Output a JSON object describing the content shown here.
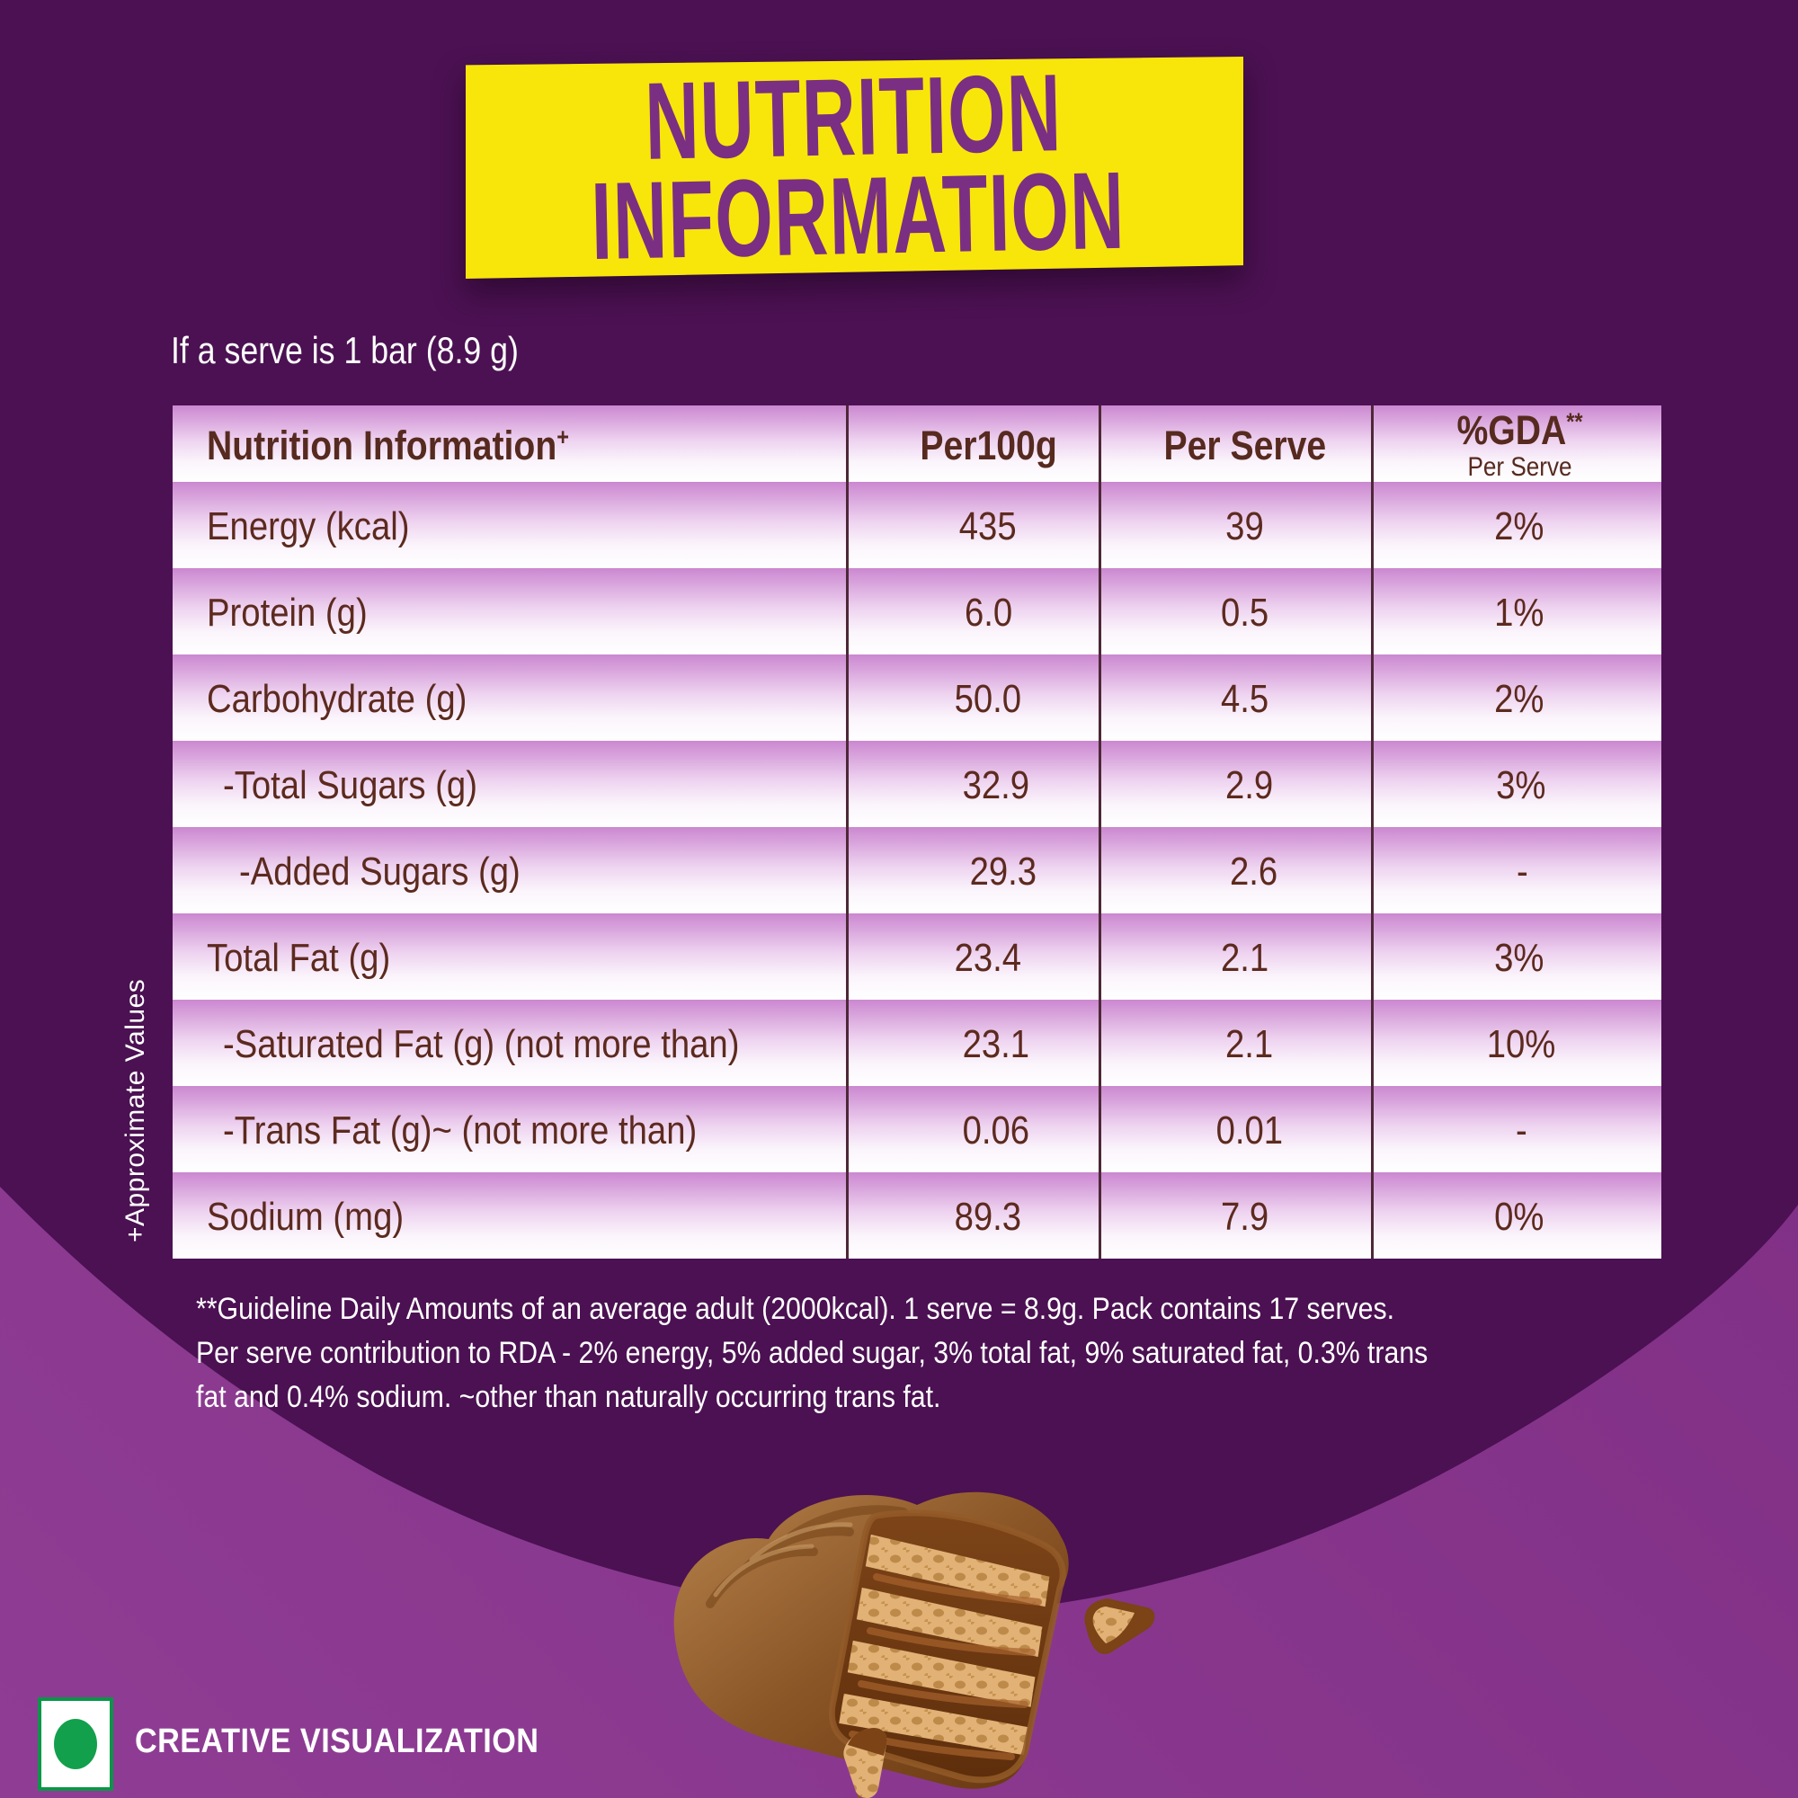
{
  "banner": {
    "title_lines": [
      "NUTRITION",
      "INFORMATION"
    ]
  },
  "serve_note": "If a serve is 1 bar (8.9 g)",
  "table": {
    "headers": {
      "col1": "Nutrition Information",
      "col1_sup": "+",
      "col2": "Per100g",
      "col3": "Per Serve",
      "col4": "%GDA",
      "col4_sup": "**",
      "col4_sub": "Per Serve"
    },
    "rows": [
      {
        "label": "Energy (kcal)",
        "indent": 0,
        "per_100g": "435",
        "per_serve": "39",
        "gda_per_serve": "2%"
      },
      {
        "label": "Protein (g)",
        "indent": 0,
        "per_100g": "6.0",
        "per_serve": "0.5",
        "gda_per_serve": "1%"
      },
      {
        "label": "Carbohydrate (g)",
        "indent": 0,
        "per_100g": "50.0",
        "per_serve": "4.5",
        "gda_per_serve": "2%"
      },
      {
        "label": "-Total Sugars (g)",
        "indent": 1,
        "per_100g": "32.9",
        "per_serve": "2.9",
        "gda_per_serve": "3%"
      },
      {
        "label": "-Added Sugars (g)",
        "indent": 2,
        "per_100g": "29.3",
        "per_serve": "2.6",
        "gda_per_serve": "-"
      },
      {
        "label": "Total Fat (g)",
        "indent": 0,
        "per_100g": "23.4",
        "per_serve": "2.1",
        "gda_per_serve": "3%"
      },
      {
        "label": "-Saturated Fat (g) (not more than)",
        "indent": 1,
        "per_100g": "23.1",
        "per_serve": "2.1",
        "gda_per_serve": "10%"
      },
      {
        "label": "-Trans Fat (g)~ (not more than)",
        "indent": 1,
        "per_100g": "0.06",
        "per_serve": "0.01",
        "gda_per_serve": "-"
      },
      {
        "label": "Sodium (mg)",
        "indent": 0,
        "per_100g": "89.3",
        "per_serve": "7.9",
        "gda_per_serve": "0%"
      }
    ]
  },
  "side_note": "+Approximate Values",
  "footnote_lines": [
    "**Guideline Daily Amounts of an average adult (2000kcal). 1 serve = 8.9g. Pack contains 17 serves.",
    "Per serve contribution to RDA - 2% energy, 5% added sugar, 3% total fat, 9% saturated fat, 0.3% trans",
    "fat and 0.4% sodium. ~other than naturally occurring trans fat."
  ],
  "footer": {
    "label": "CREATIVE VISUALIZATION"
  },
  "illustration": "chocolate-coated-wafer-bar-cross-section-with-broken-piece-and-crumb",
  "colors": {
    "background_dark_purple": "#4b1152",
    "background_light_purple": "#7c2884",
    "banner_yellow": "#f8e60a",
    "title_purple": "#7a2f83",
    "table_text_brown": "#5c2a1e",
    "row_gradient_top": "#cb88d0",
    "divider": "#4d2837",
    "veg_mark_green": "#12a04c",
    "text_white": "#ffffff"
  }
}
